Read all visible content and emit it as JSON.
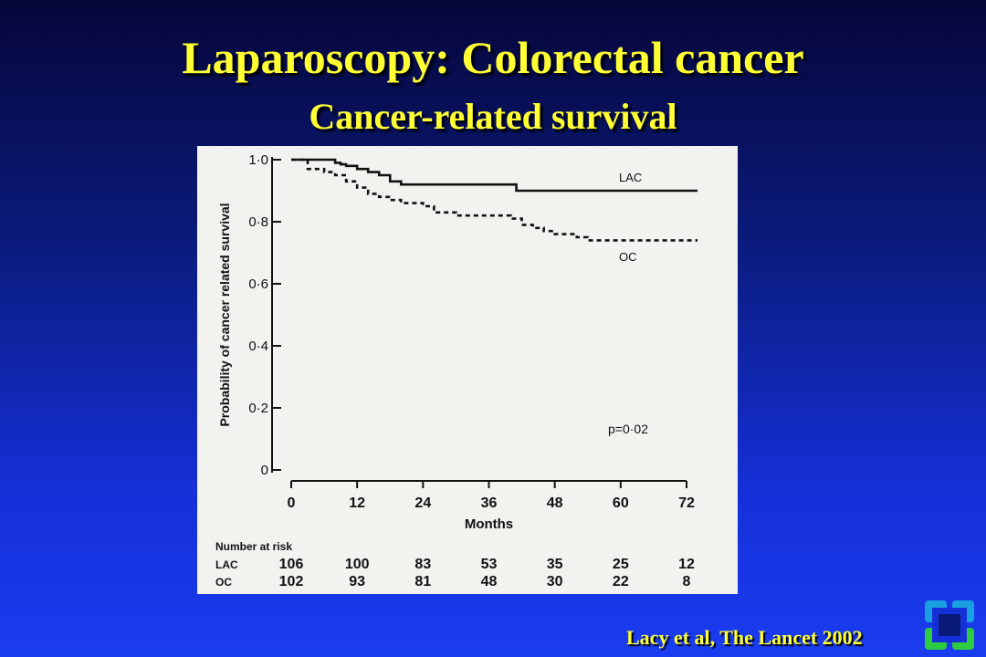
{
  "slide": {
    "title": "Laparoscopy: Colorectal cancer",
    "subtitle": "Cancer-related survival",
    "citation": "Lacy et al,  The Lancet 2002"
  },
  "logo": {
    "icon": "cleveland-clinic-logo-icon",
    "colors": [
      "#1aa0e0",
      "#2ecc40"
    ]
  },
  "chart_data": {
    "type": "line",
    "xlabel": "Months",
    "ylabel": "Probability of cancer related survival",
    "xlim": [
      0,
      72
    ],
    "ylim": [
      0,
      1
    ],
    "x_ticks": [
      0,
      12,
      24,
      36,
      48,
      60,
      72
    ],
    "y_ticks": [
      0,
      0.2,
      0.4,
      0.6,
      0.8,
      1.0
    ],
    "y_tick_labels": [
      "0",
      "0·2",
      "0·4",
      "0·6",
      "0·8",
      "1·0"
    ],
    "annotation": "p=0·02",
    "series": [
      {
        "name": "LAC",
        "style": "solid",
        "x": [
          0,
          7,
          8,
          9,
          10,
          12,
          14,
          16,
          18,
          20,
          24,
          40,
          41,
          74
        ],
        "y": [
          1.0,
          1.0,
          0.99,
          0.985,
          0.98,
          0.97,
          0.96,
          0.95,
          0.93,
          0.92,
          0.92,
          0.92,
          0.9,
          0.9
        ]
      },
      {
        "name": "OC",
        "style": "dashed",
        "x": [
          0,
          2,
          3,
          6,
          8,
          10,
          12,
          14,
          16,
          18,
          20,
          24,
          26,
          30,
          32,
          34,
          36,
          38,
          40,
          42,
          44,
          46,
          48,
          50,
          52,
          54,
          74
        ],
        "y": [
          1.0,
          1.0,
          0.97,
          0.96,
          0.95,
          0.93,
          0.91,
          0.89,
          0.88,
          0.87,
          0.86,
          0.85,
          0.83,
          0.82,
          0.82,
          0.82,
          0.82,
          0.82,
          0.81,
          0.79,
          0.78,
          0.77,
          0.76,
          0.76,
          0.75,
          0.74,
          0.74
        ]
      }
    ],
    "risk_table": {
      "header": "Number at risk",
      "rows": [
        {
          "label": "LAC",
          "values": [
            "106",
            "100",
            "83",
            "53",
            "35",
            "25",
            "12"
          ]
        },
        {
          "label": "OC",
          "values": [
            "102",
            "93",
            "81",
            "48",
            "30",
            "22",
            "8"
          ]
        }
      ]
    }
  }
}
